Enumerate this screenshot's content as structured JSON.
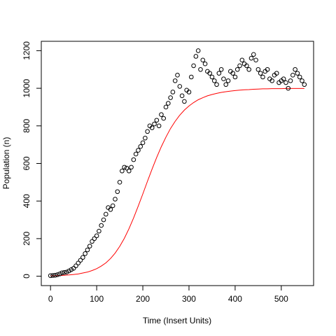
{
  "chart_data": {
    "type": "scatter",
    "title": "",
    "xlabel": "Time (Insert Units)",
    "ylabel": "Population (n)",
    "xlim": [
      -20,
      570
    ],
    "ylim": [
      -50,
      1250
    ],
    "x_ticks": [
      0,
      100,
      200,
      300,
      400,
      500
    ],
    "y_ticks": [
      0,
      200,
      400,
      600,
      800,
      1000,
      1200
    ],
    "grid": false,
    "legend": "none",
    "series": [
      {
        "kind": "points",
        "marker": "open-circle",
        "color": "#000000",
        "x": [
          0,
          5,
          10,
          15,
          20,
          25,
          30,
          35,
          40,
          45,
          50,
          55,
          60,
          65,
          70,
          75,
          80,
          85,
          90,
          95,
          100,
          105,
          110,
          115,
          120,
          125,
          130,
          135,
          140,
          145,
          150,
          155,
          160,
          165,
          170,
          175,
          180,
          185,
          190,
          195,
          200,
          205,
          210,
          215,
          220,
          225,
          230,
          235,
          240,
          245,
          250,
          255,
          260,
          265,
          270,
          275,
          280,
          285,
          290,
          295,
          300,
          305,
          310,
          315,
          320,
          325,
          330,
          335,
          340,
          345,
          350,
          355,
          360,
          365,
          370,
          375,
          380,
          385,
          390,
          395,
          400,
          405,
          410,
          415,
          420,
          425,
          430,
          435,
          440,
          445,
          450,
          455,
          460,
          465,
          470,
          475,
          480,
          485,
          490,
          495,
          500,
          505,
          510,
          515,
          520,
          525,
          530,
          535,
          540,
          545,
          550
        ],
        "y": [
          3,
          4,
          5,
          8,
          12,
          18,
          20,
          22,
          28,
          35,
          42,
          55,
          70,
          85,
          100,
          120,
          140,
          160,
          185,
          200,
          215,
          240,
          270,
          300,
          330,
          365,
          355,
          375,
          410,
          450,
          500,
          560,
          580,
          575,
          560,
          580,
          620,
          650,
          670,
          690,
          710,
          735,
          770,
          800,
          790,
          810,
          830,
          800,
          860,
          840,
          900,
          920,
          950,
          980,
          1040,
          1070,
          1010,
          960,
          930,
          990,
          980,
          1060,
          1120,
          1170,
          1200,
          1100,
          1150,
          1130,
          1090,
          1080,
          1060,
          1040,
          1020,
          1080,
          1100,
          1050,
          1020,
          1040,
          1090,
          1080,
          1060,
          1100,
          1120,
          1150,
          1130,
          1120,
          1100,
          1160,
          1180,
          1150,
          1100,
          1080,
          1060,
          1090,
          1100,
          1050,
          1040,
          1070,
          1080,
          1030,
          1040,
          1050,
          1030,
          1000,
          1040,
          1070,
          1100,
          1080,
          1060,
          1040,
          1020
        ]
      },
      {
        "kind": "line",
        "color": "#ff0000",
        "x": [
          0,
          10,
          20,
          30,
          40,
          50,
          60,
          70,
          80,
          90,
          100,
          110,
          120,
          130,
          140,
          150,
          160,
          170,
          180,
          190,
          200,
          210,
          220,
          230,
          240,
          250,
          260,
          270,
          280,
          290,
          300,
          310,
          320,
          330,
          340,
          350,
          360,
          370,
          380,
          390,
          400,
          410,
          420,
          430,
          440,
          450,
          460,
          470,
          480,
          490,
          500,
          510,
          520,
          530,
          540,
          550
        ],
        "y": [
          2,
          2.7,
          3.7,
          5,
          6.7,
          9.1,
          12,
          17,
          22,
          30,
          40,
          54,
          71,
          94,
          123,
          159,
          202,
          253,
          310,
          373,
          438,
          505,
          570,
          632,
          689,
          740,
          786,
          824,
          857,
          884,
          906,
          924,
          939,
          950,
          960,
          967,
          973,
          978,
          982,
          985,
          988,
          990,
          992,
          993,
          995,
          996,
          997,
          997,
          998,
          998,
          998,
          999,
          999,
          999,
          999,
          999
        ]
      }
    ]
  }
}
